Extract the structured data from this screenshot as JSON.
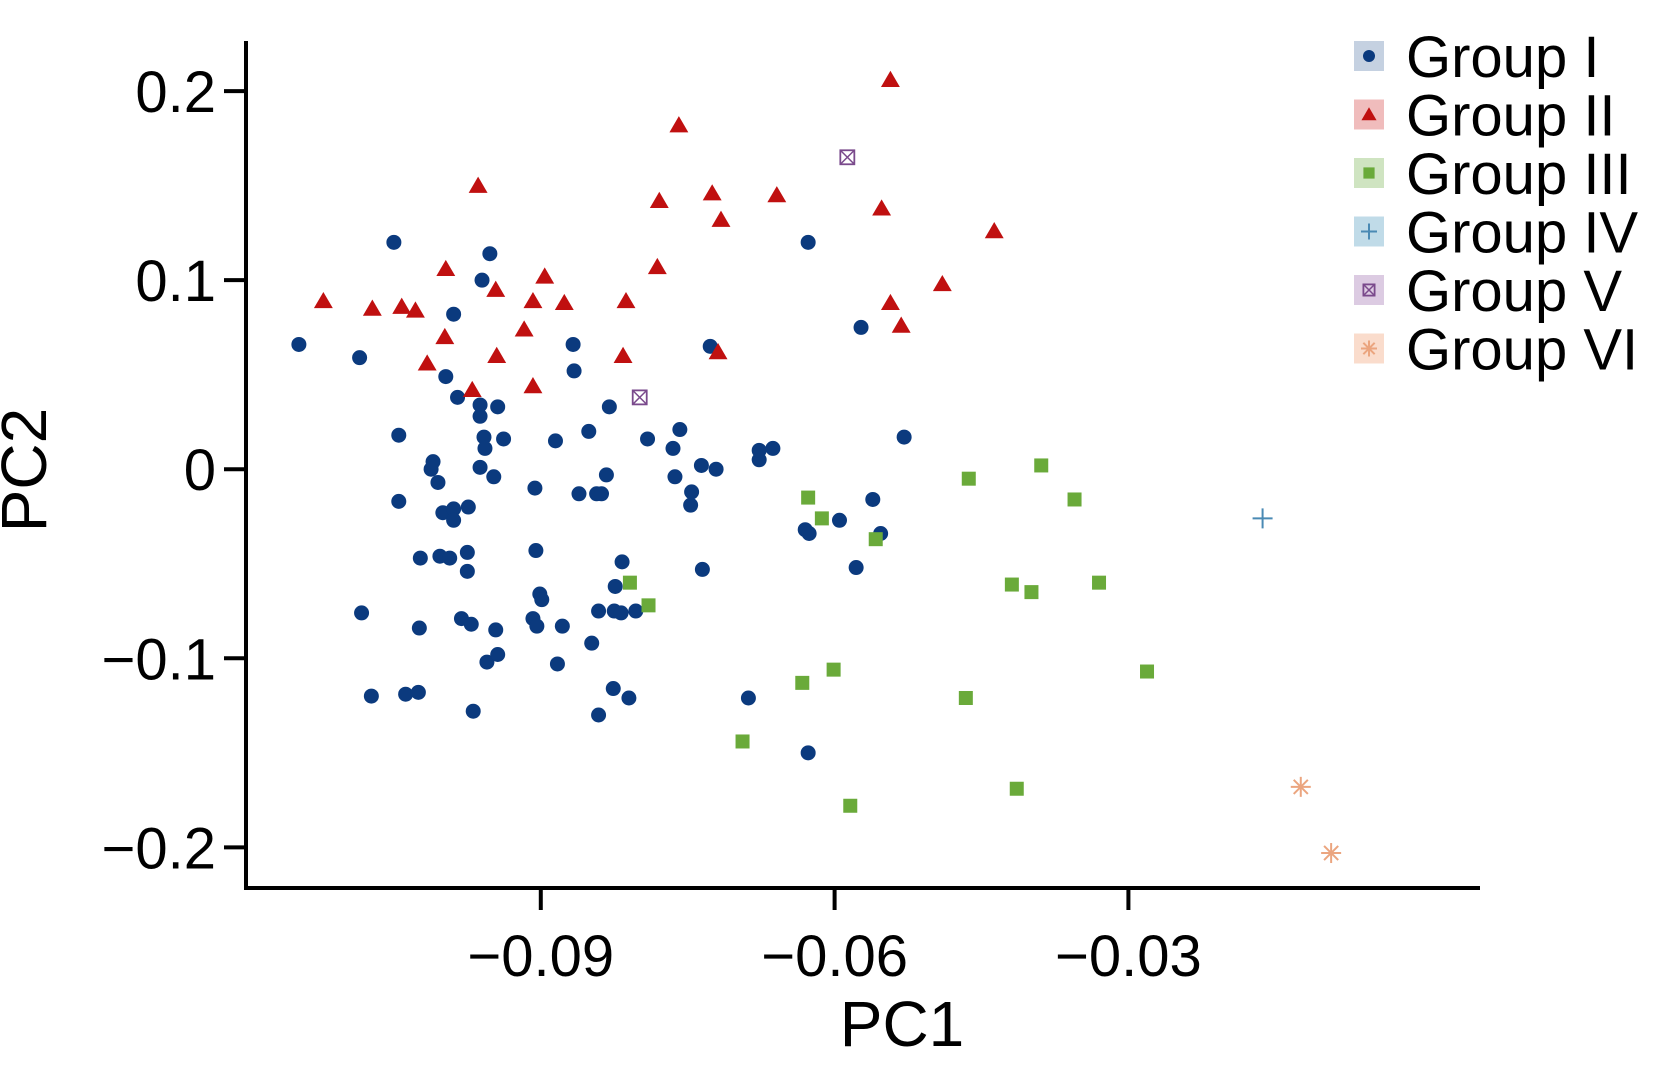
{
  "chart_data": {
    "type": "scatter",
    "xlabel": "PC1",
    "ylabel": "PC2",
    "xlim": [
      -0.1201,
      0.0059
    ],
    "ylim": [
      -0.2215,
      0.2265
    ],
    "x_ticks": [
      -0.09,
      -0.06,
      -0.03
    ],
    "x_tick_labels": [
      "−0.09",
      "−0.06",
      "−0.03"
    ],
    "y_ticks": [
      -0.2,
      -0.1,
      0,
      0.1,
      0.2
    ],
    "y_tick_labels": [
      "−0.2",
      "−0.1",
      "0",
      "0.1",
      "0.2"
    ],
    "grid": false,
    "legend_position": "top-right",
    "series": [
      {
        "name": "Group I",
        "marker": "circle",
        "color": "#0b3a7e",
        "legend_bg": "#c5d1e1",
        "points": [
          [
            -0.1147,
            0.066
          ],
          [
            -0.1085,
            0.059
          ],
          [
            -0.105,
            0.12
          ],
          [
            -0.1045,
            0.018
          ],
          [
            -0.1045,
            -0.017
          ],
          [
            -0.1005,
            -0.007
          ],
          [
            -0.1083,
            -0.076
          ],
          [
            -0.1073,
            -0.12
          ],
          [
            -0.1038,
            -0.119
          ],
          [
            -0.1025,
            -0.118
          ],
          [
            -0.1024,
            -0.084
          ],
          [
            -0.1023,
            -0.047
          ],
          [
            -0.1012,
            0.0
          ],
          [
            -0.101,
            0.004
          ],
          [
            -0.1003,
            -0.046
          ],
          [
            -0.1,
            -0.023
          ],
          [
            -0.0993,
            -0.047
          ],
          [
            -0.0989,
            0.082
          ],
          [
            -0.0989,
            -0.021
          ],
          [
            -0.0989,
            -0.027
          ],
          [
            -0.0985,
            0.038
          ],
          [
            -0.0981,
            -0.079
          ],
          [
            -0.0975,
            -0.044
          ],
          [
            -0.0975,
            -0.054
          ],
          [
            -0.0974,
            -0.02
          ],
          [
            -0.0997,
            0.049
          ],
          [
            -0.0971,
            -0.082
          ],
          [
            -0.0969,
            -0.128
          ],
          [
            -0.0962,
            0.034
          ],
          [
            -0.0962,
            0.028
          ],
          [
            -0.0962,
            0.001
          ],
          [
            -0.096,
            0.1
          ],
          [
            -0.0958,
            0.017
          ],
          [
            -0.0957,
            0.011
          ],
          [
            -0.0955,
            -0.102
          ],
          [
            -0.0952,
            0.114
          ],
          [
            -0.0948,
            -0.004
          ],
          [
            -0.0946,
            -0.085
          ],
          [
            -0.0944,
            -0.098
          ],
          [
            -0.0944,
            0.033
          ],
          [
            -0.0938,
            0.016
          ],
          [
            -0.0908,
            -0.079
          ],
          [
            -0.0906,
            -0.01
          ],
          [
            -0.0905,
            -0.043
          ],
          [
            -0.0904,
            -0.083
          ],
          [
            -0.0901,
            -0.066
          ],
          [
            -0.0899,
            -0.069
          ],
          [
            -0.0885,
            0.015
          ],
          [
            -0.0883,
            -0.103
          ],
          [
            -0.0878,
            -0.083
          ],
          [
            -0.0867,
            0.066
          ],
          [
            -0.0866,
            0.052
          ],
          [
            -0.0861,
            -0.013
          ],
          [
            -0.0851,
            0.02
          ],
          [
            -0.0848,
            -0.092
          ],
          [
            -0.0843,
            -0.013
          ],
          [
            -0.0841,
            -0.075
          ],
          [
            -0.0841,
            -0.13
          ],
          [
            -0.0838,
            -0.013
          ],
          [
            -0.0833,
            -0.003
          ],
          [
            -0.083,
            0.033
          ],
          [
            -0.0826,
            -0.116
          ],
          [
            -0.0825,
            -0.075
          ],
          [
            -0.0824,
            -0.062
          ],
          [
            -0.0818,
            -0.076
          ],
          [
            -0.0817,
            -0.049
          ],
          [
            -0.081,
            -0.121
          ],
          [
            -0.0803,
            -0.075
          ],
          [
            -0.0791,
            0.016
          ],
          [
            -0.0765,
            0.011
          ],
          [
            -0.0763,
            -0.004
          ],
          [
            -0.0758,
            0.021
          ],
          [
            -0.0747,
            -0.019
          ],
          [
            -0.0746,
            -0.012
          ],
          [
            -0.0736,
            0.002
          ],
          [
            -0.0735,
            -0.053
          ],
          [
            -0.0727,
            0.065
          ],
          [
            -0.0721,
            0.0
          ],
          [
            -0.0688,
            -0.121
          ],
          [
            -0.0677,
            0.005
          ],
          [
            -0.0677,
            0.01
          ],
          [
            -0.0663,
            0.011
          ],
          [
            -0.063,
            -0.032
          ],
          [
            -0.0627,
            0.12
          ],
          [
            -0.0627,
            -0.15
          ],
          [
            -0.0626,
            -0.034
          ],
          [
            -0.0595,
            -0.027
          ],
          [
            -0.0578,
            -0.052
          ],
          [
            -0.0573,
            0.075
          ],
          [
            -0.0561,
            -0.016
          ],
          [
            -0.0553,
            -0.034
          ],
          [
            -0.0529,
            0.017
          ]
        ]
      },
      {
        "name": "Group II",
        "marker": "triangle",
        "color": "#c01010",
        "legend_bg": "#f0bcbc",
        "points": [
          [
            -0.1122,
            0.089
          ],
          [
            -0.1072,
            0.085
          ],
          [
            -0.1042,
            0.086
          ],
          [
            -0.1028,
            0.084
          ],
          [
            -0.1016,
            0.056
          ],
          [
            -0.0998,
            0.07
          ],
          [
            -0.0997,
            0.106
          ],
          [
            -0.097,
            0.042
          ],
          [
            -0.0964,
            0.15
          ],
          [
            -0.0946,
            0.095
          ],
          [
            -0.0945,
            0.06
          ],
          [
            -0.0917,
            0.074
          ],
          [
            -0.0908,
            0.089
          ],
          [
            -0.0908,
            0.044
          ],
          [
            -0.0896,
            0.102
          ],
          [
            -0.0876,
            0.088
          ],
          [
            -0.0816,
            0.06
          ],
          [
            -0.0813,
            0.089
          ],
          [
            -0.0781,
            0.107
          ],
          [
            -0.0779,
            0.142
          ],
          [
            -0.0759,
            0.182
          ],
          [
            -0.0725,
            0.146
          ],
          [
            -0.0719,
            0.062
          ],
          [
            -0.0716,
            0.132
          ],
          [
            -0.0659,
            0.145
          ],
          [
            -0.0552,
            0.138
          ],
          [
            -0.0543,
            0.206
          ],
          [
            -0.0543,
            0.088
          ],
          [
            -0.0532,
            0.076
          ],
          [
            -0.049,
            0.098
          ],
          [
            -0.0437,
            0.126
          ]
        ]
      },
      {
        "name": "Group III",
        "marker": "square",
        "color": "#6aaa3a",
        "legend_bg": "#cfe4c1",
        "points": [
          [
            -0.0809,
            -0.06
          ],
          [
            -0.079,
            -0.072
          ],
          [
            -0.0694,
            -0.144
          ],
          [
            -0.0633,
            -0.113
          ],
          [
            -0.0627,
            -0.015
          ],
          [
            -0.0613,
            -0.026
          ],
          [
            -0.0601,
            -0.106
          ],
          [
            -0.0584,
            -0.178
          ],
          [
            -0.0558,
            -0.037
          ],
          [
            -0.0463,
            -0.005
          ],
          [
            -0.0466,
            -0.121
          ],
          [
            -0.0419,
            -0.061
          ],
          [
            -0.0414,
            -0.169
          ],
          [
            -0.0399,
            -0.065
          ],
          [
            -0.0389,
            0.002
          ],
          [
            -0.0355,
            -0.016
          ],
          [
            -0.033,
            -0.06
          ],
          [
            -0.0281,
            -0.107
          ]
        ]
      },
      {
        "name": "Group IV",
        "marker": "plus",
        "color": "#4a8ab4",
        "legend_bg": "#c0dbe8",
        "points": [
          [
            -0.0163,
            -0.026
          ]
        ]
      },
      {
        "name": "Group V",
        "marker": "boxx",
        "color": "#7a4a8c",
        "legend_bg": "#dccbe2",
        "points": [
          [
            -0.0587,
            0.165
          ],
          [
            -0.0799,
            0.038
          ]
        ]
      },
      {
        "name": "Group VI",
        "marker": "asterisk",
        "color": "#eba57f",
        "legend_bg": "#fadccc",
        "points": [
          [
            -0.0124,
            -0.168
          ],
          [
            -0.0093,
            -0.203
          ]
        ]
      }
    ]
  }
}
